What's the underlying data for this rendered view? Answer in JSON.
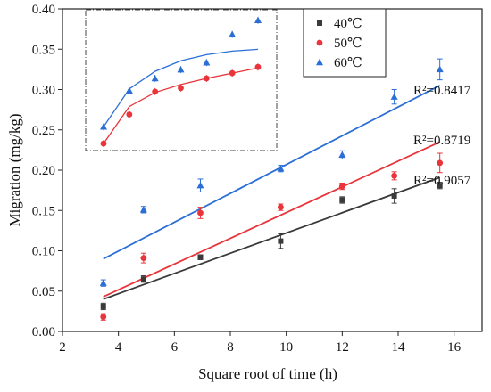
{
  "chart_data": {
    "type": "scatter",
    "xlabel": "Square root of time (h)",
    "ylabel": "Migration (mg/kg)",
    "xlim": [
      2,
      17
    ],
    "ylim": [
      0,
      0.4
    ],
    "xticks": [
      2,
      4,
      6,
      8,
      10,
      12,
      14,
      16
    ],
    "yticks": [
      0.0,
      0.05,
      0.1,
      0.15,
      0.2,
      0.25,
      0.3,
      0.35,
      0.4
    ],
    "legend_position": "top-right",
    "series": [
      {
        "name": "40℃",
        "color": "#3a3a3a",
        "marker": "square",
        "x": [
          3.46,
          4.9,
          6.93,
          9.8,
          12.0,
          13.86,
          15.49
        ],
        "y": [
          0.031,
          0.065,
          0.092,
          0.112,
          0.163,
          0.168,
          0.181
        ],
        "err": [
          0.004,
          0.004,
          0.003,
          0.009,
          0.004,
          0.009,
          0.004
        ],
        "fit": {
          "x": [
            3.46,
            15.49
          ],
          "y": [
            0.04,
            0.191
          ]
        },
        "r2_label": "R²=0.9057"
      },
      {
        "name": "50℃",
        "color": "#e8343a",
        "marker": "circle",
        "x": [
          3.46,
          4.9,
          6.93,
          9.8,
          12.0,
          13.86,
          15.49
        ],
        "y": [
          0.018,
          0.091,
          0.147,
          0.154,
          0.18,
          0.193,
          0.209
        ],
        "err": [
          0.004,
          0.006,
          0.007,
          0.004,
          0.004,
          0.005,
          0.012
        ],
        "fit": {
          "x": [
            3.46,
            15.49
          ],
          "y": [
            0.043,
            0.235
          ]
        },
        "r2_label": "R²=0.8719"
      },
      {
        "name": "60℃",
        "color": "#2b6fd6",
        "marker": "triangle",
        "x": [
          3.46,
          4.9,
          6.93,
          9.8,
          12.0,
          13.86,
          15.49
        ],
        "y": [
          0.06,
          0.151,
          0.181,
          0.202,
          0.219,
          0.291,
          0.325
        ],
        "err": [
          0.004,
          0.004,
          0.008,
          0.004,
          0.005,
          0.009,
          0.013
        ],
        "fit": {
          "x": [
            3.46,
            15.49
          ],
          "y": [
            0.09,
            0.305
          ]
        },
        "r2_label": "R²=0.8417"
      }
    ],
    "inset": {
      "description_border": "dash-dot",
      "series": [
        {
          "name": "50℃",
          "color": "#e8343a",
          "marker": "circle",
          "points": [
            0.238,
            0.271,
            0.297,
            0.301,
            0.312,
            0.318,
            0.325
          ],
          "curve": [
            0.238,
            0.28,
            0.296,
            0.305,
            0.312,
            0.318,
            0.324
          ]
        },
        {
          "name": "60℃",
          "color": "#2b6fd6",
          "marker": "triangle",
          "points": [
            0.257,
            0.298,
            0.312,
            0.322,
            0.33,
            0.362,
            0.378
          ],
          "curve": [
            0.257,
            0.3,
            0.32,
            0.332,
            0.339,
            0.343,
            0.345
          ]
        }
      ],
      "ylim": [
        0.23,
        0.39
      ]
    }
  }
}
